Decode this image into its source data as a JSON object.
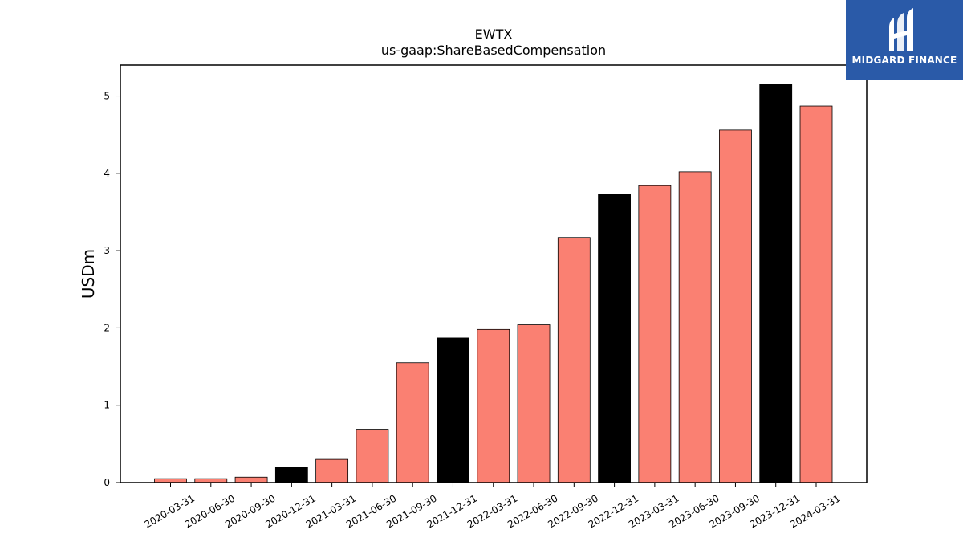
{
  "chart_data": {
    "type": "bar",
    "title": "EWTX",
    "subtitle": "us-gaap:ShareBasedCompensation",
    "xlabel": "",
    "ylabel": "USDm",
    "ylim": [
      0,
      5.4
    ],
    "yticks": [
      0,
      1,
      2,
      3,
      4,
      5
    ],
    "grid": false,
    "categories": [
      "2020-03-31",
      "2020-06-30",
      "2020-09-30",
      "2020-12-31",
      "2021-03-31",
      "2021-06-30",
      "2021-09-30",
      "2021-12-31",
      "2022-03-31",
      "2022-06-30",
      "2022-09-30",
      "2022-12-31",
      "2023-03-31",
      "2023-06-30",
      "2023-09-30",
      "2023-12-31",
      "2024-03-31"
    ],
    "values": [
      0.05,
      0.05,
      0.07,
      0.2,
      0.3,
      0.69,
      1.55,
      1.87,
      1.98,
      2.04,
      3.17,
      3.73,
      3.84,
      4.02,
      4.56,
      5.15,
      4.87
    ],
    "colors": {
      "quarter": "#fa8072",
      "year_end": "#000000"
    }
  },
  "logo": {
    "text": "MIDGARD FINANCE",
    "background": "#2a5aa8"
  }
}
